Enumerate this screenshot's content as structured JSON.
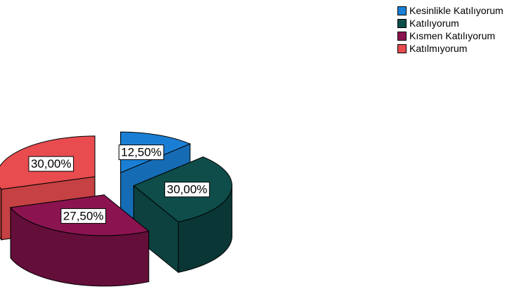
{
  "chart_data": {
    "type": "pie",
    "title": "",
    "categories": [
      "Kesinlikle Katılıyorum",
      "Katılıyorum",
      "Kısmen Katılıyorum",
      "Katılmıyorum"
    ],
    "values": [
      12.5,
      30.0,
      27.5,
      30.0
    ],
    "data_labels": [
      "12,50%",
      "30,00%",
      "27,50%",
      "30,00%"
    ],
    "colors": [
      "#1a7fd4",
      "#0e4d4a",
      "#8b1450",
      "#e84c4f"
    ],
    "exploded": true,
    "three_d": true,
    "legend_position": "top-right"
  }
}
